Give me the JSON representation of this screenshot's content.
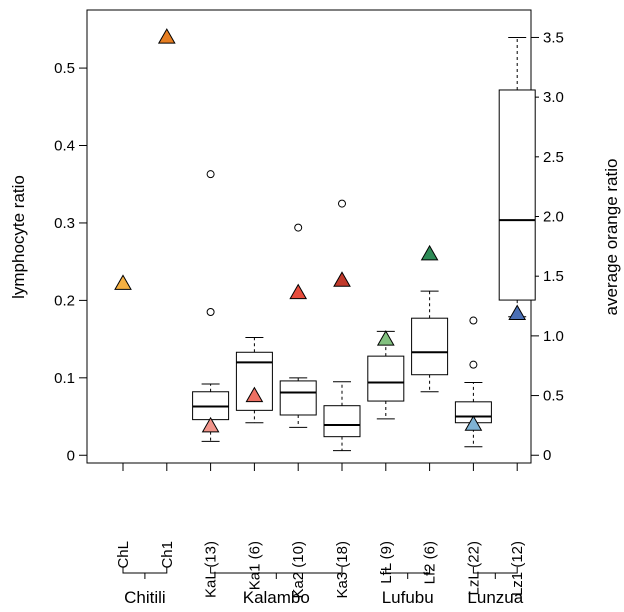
{
  "chart_data": {
    "type": "box",
    "ylabel": "lymphocyte ratio",
    "y2label": "average orange ratio",
    "ylim": [
      -0.01,
      0.575
    ],
    "y2lim": [
      -0.065,
      3.73
    ],
    "yticks": [
      "0",
      "0.1",
      "0.2",
      "0.3",
      "0.4",
      "0.5"
    ],
    "y2ticks": [
      "0",
      "0.5",
      "1.0",
      "1.5",
      "2.0",
      "2.5",
      "3.0",
      "3.5"
    ],
    "categories": [
      "ChL",
      "Ch1",
      "KaL (13)",
      "Ka1 (6)",
      "Ka2 (10)",
      "Ka3 (18)",
      "LfL (9)",
      "Lf2 (6)",
      "LzL (22)",
      "Lz1 (12)"
    ],
    "groups": [
      {
        "name": "Chitili",
        "from": 0,
        "to": 1
      },
      {
        "name": "Kalambo",
        "from": 2,
        "to": 5
      },
      {
        "name": "Lufubu",
        "from": 6,
        "to": 7
      },
      {
        "name": "Lunzua",
        "from": 8,
        "to": 9
      }
    ],
    "boxes": [
      null,
      null,
      {
        "whisker_low": 0.018,
        "q1": 0.046,
        "median": 0.063,
        "q3": 0.082,
        "whisker_high": 0.092,
        "outliers": [
          0.185,
          0.363
        ]
      },
      {
        "whisker_low": 0.042,
        "q1": 0.058,
        "median": 0.12,
        "q3": 0.133,
        "whisker_high": 0.152,
        "outliers": []
      },
      {
        "whisker_low": 0.036,
        "q1": 0.052,
        "median": 0.081,
        "q3": 0.096,
        "whisker_high": 0.1,
        "outliers": [
          0.294
        ]
      },
      {
        "whisker_low": 0.006,
        "q1": 0.024,
        "median": 0.039,
        "q3": 0.064,
        "whisker_high": 0.095,
        "outliers": [
          0.325
        ]
      },
      {
        "whisker_low": 0.047,
        "q1": 0.07,
        "median": 0.094,
        "q3": 0.128,
        "whisker_high": 0.16,
        "outliers": []
      },
      {
        "whisker_low": 0.082,
        "q1": 0.104,
        "median": 0.133,
        "q3": 0.177,
        "whisker_high": 0.212,
        "outliers": []
      },
      {
        "whisker_low": 0.011,
        "q1": 0.042,
        "median": 0.05,
        "q3": 0.069,
        "whisker_high": 0.094,
        "outliers": [
          0.117,
          0.174
        ]
      },
      {
        "y2": true,
        "whisker_low": 1.16,
        "q1": 1.3,
        "median": 1.97,
        "q3": 3.06,
        "whisker_high": 3.5,
        "outliers": []
      }
    ],
    "triangles": [
      {
        "category": 0,
        "value": 0.222,
        "color": "#f5b041"
      },
      {
        "category": 1,
        "value": 0.54,
        "color": "#e67e22"
      },
      {
        "category": 2,
        "value": 0.038,
        "color": "#f1948a"
      },
      {
        "category": 3,
        "value": 0.077,
        "color": "#ec7063"
      },
      {
        "category": 4,
        "value": 0.21,
        "color": "#e74c3c"
      },
      {
        "category": 5,
        "value": 0.226,
        "color": "#c0392b"
      },
      {
        "category": 6,
        "value": 0.15,
        "color": "#82c07f"
      },
      {
        "category": 7,
        "value": 0.26,
        "color": "#2e8b57"
      },
      {
        "category": 8,
        "value": 0.04,
        "color": "#7fb3d5"
      },
      {
        "category": 9,
        "value": 0.183,
        "color": "#4a6fb5"
      }
    ],
    "grid": false,
    "legend": "none"
  }
}
